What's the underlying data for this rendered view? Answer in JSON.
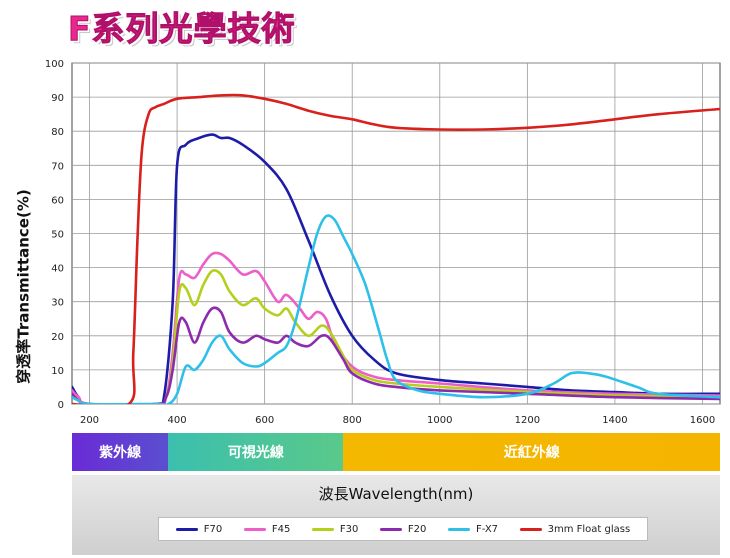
{
  "title": "F系列光學技術",
  "chart_data": {
    "type": "line",
    "xlabel": "波長Wavelength(nm)",
    "ylabel": "穿透率Transmittance(%)",
    "xlim": [
      160,
      1640
    ],
    "ylim": [
      0,
      100
    ],
    "x_ticks": [
      200,
      400,
      600,
      800,
      1000,
      1200,
      1400,
      1600
    ],
    "y_ticks": [
      0,
      10,
      20,
      30,
      40,
      50,
      60,
      70,
      80,
      90,
      100
    ],
    "grid": true,
    "legend_position": "bottom",
    "bands": [
      {
        "label": "紫外線",
        "from": 160,
        "to": 380,
        "color": "#6a2bd6",
        "color2": "#5a4fd0"
      },
      {
        "label": "可視光線",
        "from": 380,
        "to": 780,
        "color": "#3bbfae",
        "color2": "#5ac98a"
      },
      {
        "label": "近紅外線",
        "from": 780,
        "to": 1640,
        "color": "#f5b800",
        "color2": "#f5b400"
      }
    ],
    "series": [
      {
        "name": "F70",
        "color": "#1c1ca8",
        "points": [
          [
            160,
            5
          ],
          [
            175,
            2
          ],
          [
            200,
            0
          ],
          [
            350,
            0
          ],
          [
            370,
            2
          ],
          [
            390,
            30
          ],
          [
            400,
            70
          ],
          [
            420,
            76
          ],
          [
            450,
            78
          ],
          [
            480,
            79
          ],
          [
            500,
            78
          ],
          [
            520,
            78
          ],
          [
            550,
            76
          ],
          [
            600,
            71
          ],
          [
            650,
            63
          ],
          [
            700,
            48
          ],
          [
            750,
            32
          ],
          [
            800,
            20
          ],
          [
            850,
            13
          ],
          [
            900,
            9
          ],
          [
            1000,
            7
          ],
          [
            1100,
            6
          ],
          [
            1200,
            5
          ],
          [
            1300,
            4
          ],
          [
            1400,
            3.5
          ],
          [
            1500,
            3
          ],
          [
            1640,
            3
          ]
        ]
      },
      {
        "name": "F45",
        "color": "#ee5ec8",
        "points": [
          [
            160,
            4
          ],
          [
            175,
            2
          ],
          [
            200,
            0
          ],
          [
            350,
            0
          ],
          [
            375,
            2
          ],
          [
            390,
            15
          ],
          [
            405,
            37
          ],
          [
            420,
            38
          ],
          [
            440,
            37
          ],
          [
            460,
            41
          ],
          [
            480,
            44
          ],
          [
            500,
            44
          ],
          [
            520,
            42
          ],
          [
            550,
            38
          ],
          [
            580,
            39
          ],
          [
            600,
            36
          ],
          [
            630,
            30
          ],
          [
            650,
            32
          ],
          [
            680,
            28
          ],
          [
            700,
            25
          ],
          [
            720,
            27
          ],
          [
            740,
            25
          ],
          [
            760,
            18
          ],
          [
            800,
            11
          ],
          [
            850,
            8
          ],
          [
            900,
            7
          ],
          [
            1000,
            6
          ],
          [
            1200,
            4
          ],
          [
            1400,
            3
          ],
          [
            1640,
            2.5
          ]
        ]
      },
      {
        "name": "F30",
        "color": "#b5cf1c",
        "points": [
          [
            160,
            3
          ],
          [
            175,
            1
          ],
          [
            200,
            0
          ],
          [
            350,
            0
          ],
          [
            375,
            2
          ],
          [
            390,
            12
          ],
          [
            405,
            33
          ],
          [
            420,
            34
          ],
          [
            440,
            29
          ],
          [
            460,
            35
          ],
          [
            480,
            39
          ],
          [
            500,
            38
          ],
          [
            520,
            33
          ],
          [
            550,
            29
          ],
          [
            580,
            31
          ],
          [
            600,
            28
          ],
          [
            630,
            26
          ],
          [
            650,
            28
          ],
          [
            670,
            24
          ],
          [
            700,
            20
          ],
          [
            730,
            23
          ],
          [
            750,
            21
          ],
          [
            780,
            14
          ],
          [
            800,
            10
          ],
          [
            850,
            7
          ],
          [
            900,
            6
          ],
          [
            1000,
            5
          ],
          [
            1200,
            3.5
          ],
          [
            1400,
            2.5
          ],
          [
            1640,
            2
          ]
        ]
      },
      {
        "name": "F20",
        "color": "#8e2aac",
        "points": [
          [
            160,
            3
          ],
          [
            175,
            1
          ],
          [
            200,
            0
          ],
          [
            350,
            0
          ],
          [
            375,
            2
          ],
          [
            390,
            10
          ],
          [
            405,
            24
          ],
          [
            420,
            24
          ],
          [
            440,
            18
          ],
          [
            460,
            24
          ],
          [
            480,
            28
          ],
          [
            500,
            27
          ],
          [
            520,
            21
          ],
          [
            550,
            18
          ],
          [
            580,
            20
          ],
          [
            600,
            19
          ],
          [
            630,
            18
          ],
          [
            650,
            20
          ],
          [
            670,
            18
          ],
          [
            700,
            17
          ],
          [
            730,
            20
          ],
          [
            750,
            19
          ],
          [
            780,
            13
          ],
          [
            800,
            9
          ],
          [
            850,
            6
          ],
          [
            900,
            5
          ],
          [
            1000,
            4
          ],
          [
            1200,
            3
          ],
          [
            1400,
            2
          ],
          [
            1640,
            1.5
          ]
        ]
      },
      {
        "name": "F-X7",
        "color": "#2ec0e8",
        "points": [
          [
            160,
            2
          ],
          [
            175,
            1
          ],
          [
            200,
            0
          ],
          [
            350,
            0
          ],
          [
            380,
            0
          ],
          [
            400,
            3
          ],
          [
            420,
            11
          ],
          [
            440,
            10
          ],
          [
            460,
            13
          ],
          [
            480,
            18
          ],
          [
            500,
            20
          ],
          [
            520,
            16
          ],
          [
            550,
            12
          ],
          [
            580,
            11
          ],
          [
            600,
            12
          ],
          [
            630,
            15
          ],
          [
            650,
            17
          ],
          [
            670,
            24
          ],
          [
            700,
            40
          ],
          [
            720,
            50
          ],
          [
            740,
            55
          ],
          [
            760,
            54
          ],
          [
            780,
            49
          ],
          [
            800,
            44
          ],
          [
            830,
            35
          ],
          [
            860,
            22
          ],
          [
            880,
            13
          ],
          [
            900,
            7
          ],
          [
            950,
            4
          ],
          [
            1000,
            3
          ],
          [
            1100,
            2
          ],
          [
            1200,
            3
          ],
          [
            1260,
            6
          ],
          [
            1300,
            9
          ],
          [
            1340,
            9
          ],
          [
            1380,
            8
          ],
          [
            1450,
            5
          ],
          [
            1500,
            3
          ],
          [
            1640,
            2
          ]
        ]
      },
      {
        "name": "3mm Float glass",
        "color": "#d8201c",
        "points": [
          [
            160,
            0
          ],
          [
            290,
            0
          ],
          [
            300,
            15
          ],
          [
            310,
            50
          ],
          [
            320,
            75
          ],
          [
            335,
            85
          ],
          [
            350,
            87
          ],
          [
            370,
            88
          ],
          [
            400,
            89.5
          ],
          [
            450,
            90
          ],
          [
            500,
            90.5
          ],
          [
            550,
            90.5
          ],
          [
            600,
            89.5
          ],
          [
            650,
            88
          ],
          [
            700,
            86
          ],
          [
            750,
            84.5
          ],
          [
            800,
            83.5
          ],
          [
            850,
            82
          ],
          [
            900,
            81
          ],
          [
            1000,
            80.5
          ],
          [
            1100,
            80.5
          ],
          [
            1200,
            81
          ],
          [
            1300,
            82
          ],
          [
            1400,
            83.5
          ],
          [
            1500,
            85
          ],
          [
            1640,
            86.5
          ]
        ]
      }
    ]
  }
}
